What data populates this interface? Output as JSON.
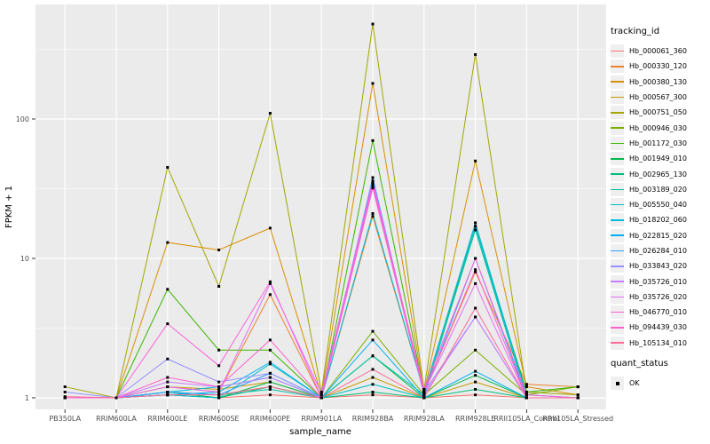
{
  "colors": {
    "panel_bg": "#EBEBEB",
    "grid": "#FFFFFF",
    "axis_text": "#4D4D4D",
    "tick_mark": "#333333",
    "point": "#000000"
  },
  "axes": {
    "xlabel": "sample_name",
    "ylabel": "FPKM + 1"
  },
  "legend": {
    "tracking_title": "tracking_id",
    "quant_title": "quant_status",
    "quant_items": [
      {
        "label": "OK",
        "marker": "black-square"
      }
    ]
  },
  "chart_data": {
    "type": "line",
    "title": "",
    "xlabel": "sample_name",
    "ylabel": "FPKM + 1",
    "y_scale": "log10",
    "y_ticks": [
      1,
      10,
      100
    ],
    "y_minor_ticks": [
      3.162,
      31.62,
      316.2
    ],
    "ylim": [
      0.83,
      600
    ],
    "grid": true,
    "legend_position": "right",
    "point_marker": "black-square",
    "categories": [
      "PB350LA",
      "RRIM600LA",
      "RRIM600LE",
      "RRIM600SE",
      "RRIM600PE",
      "RRIM901LA",
      "RRIM928BA",
      "RRIM928LA",
      "RRIM928LE",
      "RRII105LA_Control",
      "RRII105LA_Stressed"
    ],
    "series": [
      {
        "name": "Hb_000061_360",
        "color": "#F8766D",
        "values": [
          1,
          1,
          1.05,
          1,
          1.05,
          1,
          1.05,
          1,
          1.05,
          1,
          1
        ]
      },
      {
        "name": "Hb_000330_120",
        "color": "#EA8331",
        "values": [
          1,
          1,
          1.2,
          1.1,
          5.5,
          1,
          20,
          1.1,
          8,
          1.25,
          1.2
        ]
      },
      {
        "name": "Hb_000380_130",
        "color": "#D89000",
        "values": [
          1,
          1,
          13,
          11.5,
          16.5,
          1.05,
          180,
          1.1,
          50,
          1.2,
          1.05
        ]
      },
      {
        "name": "Hb_000567_300",
        "color": "#C49A00",
        "values": [
          1,
          1,
          1.2,
          1.15,
          1.3,
          1,
          1.4,
          1,
          1.3,
          1,
          1
        ]
      },
      {
        "name": "Hb_000751_050",
        "color": "#A3A500",
        "values": [
          1.2,
          1,
          45,
          6.3,
          110,
          1.1,
          480,
          1.15,
          290,
          1.1,
          1.05
        ]
      },
      {
        "name": "Hb_000946_030",
        "color": "#7CAE00",
        "values": [
          1,
          1,
          1.1,
          1.05,
          1.2,
          1,
          3,
          1.05,
          2.2,
          1.05,
          1.2
        ]
      },
      {
        "name": "Hb_001172_030",
        "color": "#39B600",
        "values": [
          1,
          1,
          6,
          2.2,
          2.2,
          1,
          70,
          1.1,
          17,
          1.1,
          1.2
        ]
      },
      {
        "name": "Hb_001949_010",
        "color": "#00BB4E",
        "values": [
          1,
          1,
          1.1,
          1,
          1.3,
          1,
          2,
          1,
          1.45,
          1,
          1
        ]
      },
      {
        "name": "Hb_002965_130",
        "color": "#00BF7D",
        "values": [
          1,
          1,
          1.05,
          1,
          1.2,
          1,
          1.1,
          1,
          1.15,
          1,
          1
        ]
      },
      {
        "name": "Hb_003189_020",
        "color": "#00C1A3",
        "values": [
          1,
          1,
          1.1,
          1.05,
          1.15,
          1,
          2,
          1.05,
          16,
          1,
          1
        ]
      },
      {
        "name": "Hb_005550_040",
        "color": "#00BFC4",
        "values": [
          1,
          1,
          1.05,
          1,
          1.75,
          1,
          1.25,
          1,
          17,
          1,
          1
        ]
      },
      {
        "name": "Hb_018202_060",
        "color": "#00BAE0",
        "values": [
          1,
          1,
          1.1,
          1.2,
          1.4,
          1,
          21,
          1.1,
          18,
          1.05,
          1
        ]
      },
      {
        "name": "Hb_022815_020",
        "color": "#00B0F6",
        "values": [
          1,
          1,
          1.05,
          1.1,
          1.8,
          1,
          2.6,
          1,
          1.55,
          1,
          1
        ]
      },
      {
        "name": "Hb_026284_010",
        "color": "#35A2FF",
        "values": [
          1,
          1,
          1.1,
          1.05,
          1.5,
          1,
          38,
          1.05,
          10,
          1,
          1
        ]
      },
      {
        "name": "Hb_033843_020",
        "color": "#9590FF",
        "values": [
          1.1,
          1,
          1.9,
          1.3,
          1.5,
          1,
          35,
          1.1,
          3.8,
          1,
          1
        ]
      },
      {
        "name": "Hb_035726_010",
        "color": "#C77CFF",
        "values": [
          1,
          1,
          1.3,
          1.2,
          1.4,
          1,
          33,
          1.05,
          3.8,
          1,
          1
        ]
      },
      {
        "name": "Hb_035726_020",
        "color": "#E76BF3",
        "values": [
          1,
          1,
          1.2,
          1.1,
          6.6,
          1.08,
          36,
          1.1,
          6.6,
          1,
          1
        ]
      },
      {
        "name": "Hb_046770_010",
        "color": "#FA62DB",
        "values": [
          1,
          1,
          3.4,
          1.7,
          6.8,
          1,
          34,
          1.15,
          10,
          1.05,
          1
        ]
      },
      {
        "name": "Hb_094439_030",
        "color": "#FF61CC",
        "values": [
          1,
          1,
          1.4,
          1.2,
          2.6,
          1,
          32,
          1.1,
          8.3,
          1,
          1
        ]
      },
      {
        "name": "Hb_105134_010",
        "color": "#FF6A98",
        "values": [
          1.02,
          1,
          1.05,
          1.05,
          1.2,
          1,
          1.6,
          1,
          4.4,
          1,
          1
        ]
      }
    ]
  }
}
